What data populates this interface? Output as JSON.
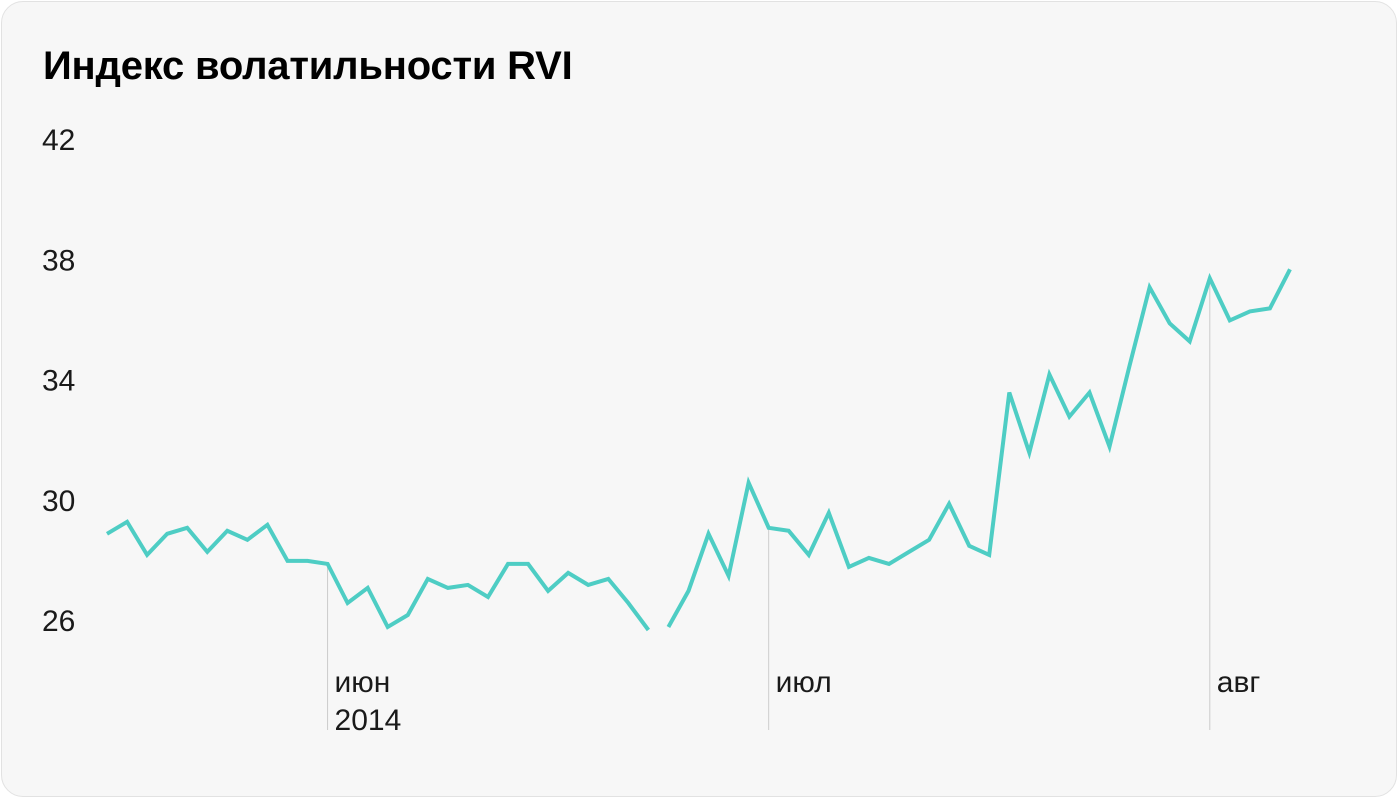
{
  "title": "Индекс волатильности RVI",
  "colors": {
    "background": "#f7f7f7",
    "line": "#4ecdc4",
    "marker": "#cccccc",
    "text": "#000000"
  },
  "chart_data": {
    "type": "line",
    "title": "Индекс волатильности RVI",
    "xlabel": "",
    "ylabel": "",
    "ylim": [
      24.5,
      42
    ],
    "yticks": [
      42,
      38,
      34,
      30,
      26
    ],
    "grid": false,
    "legend": "none",
    "x_markers": [
      {
        "index": 11,
        "label": "июн",
        "sublabel": "2014"
      },
      {
        "index": 33,
        "label": "июл",
        "sublabel": ""
      },
      {
        "index": 55,
        "label": "авг",
        "sublabel": ""
      }
    ],
    "series": [
      {
        "color": "#4ecdc4",
        "segments": [
          [
            28.9,
            29.3,
            28.2,
            28.9,
            29.1,
            28.3,
            29.0,
            28.7,
            29.2,
            28.0,
            28.0,
            27.9,
            26.6,
            27.1,
            25.8,
            26.2,
            27.4,
            27.1,
            27.2,
            26.8,
            27.9,
            27.9,
            27.0,
            27.6,
            27.2,
            27.4,
            26.6,
            25.7
          ],
          [
            25.8,
            27.0,
            28.9,
            27.5,
            30.6,
            29.1,
            29.0,
            28.2,
            29.6,
            27.8,
            28.1,
            27.9,
            28.3,
            28.7,
            29.9,
            28.5,
            28.2,
            33.6,
            31.6,
            34.2,
            32.8,
            33.6,
            31.8,
            34.5,
            37.1,
            35.9,
            35.3,
            37.4,
            36.0,
            36.3,
            36.4,
            37.7
          ]
        ]
      }
    ]
  }
}
